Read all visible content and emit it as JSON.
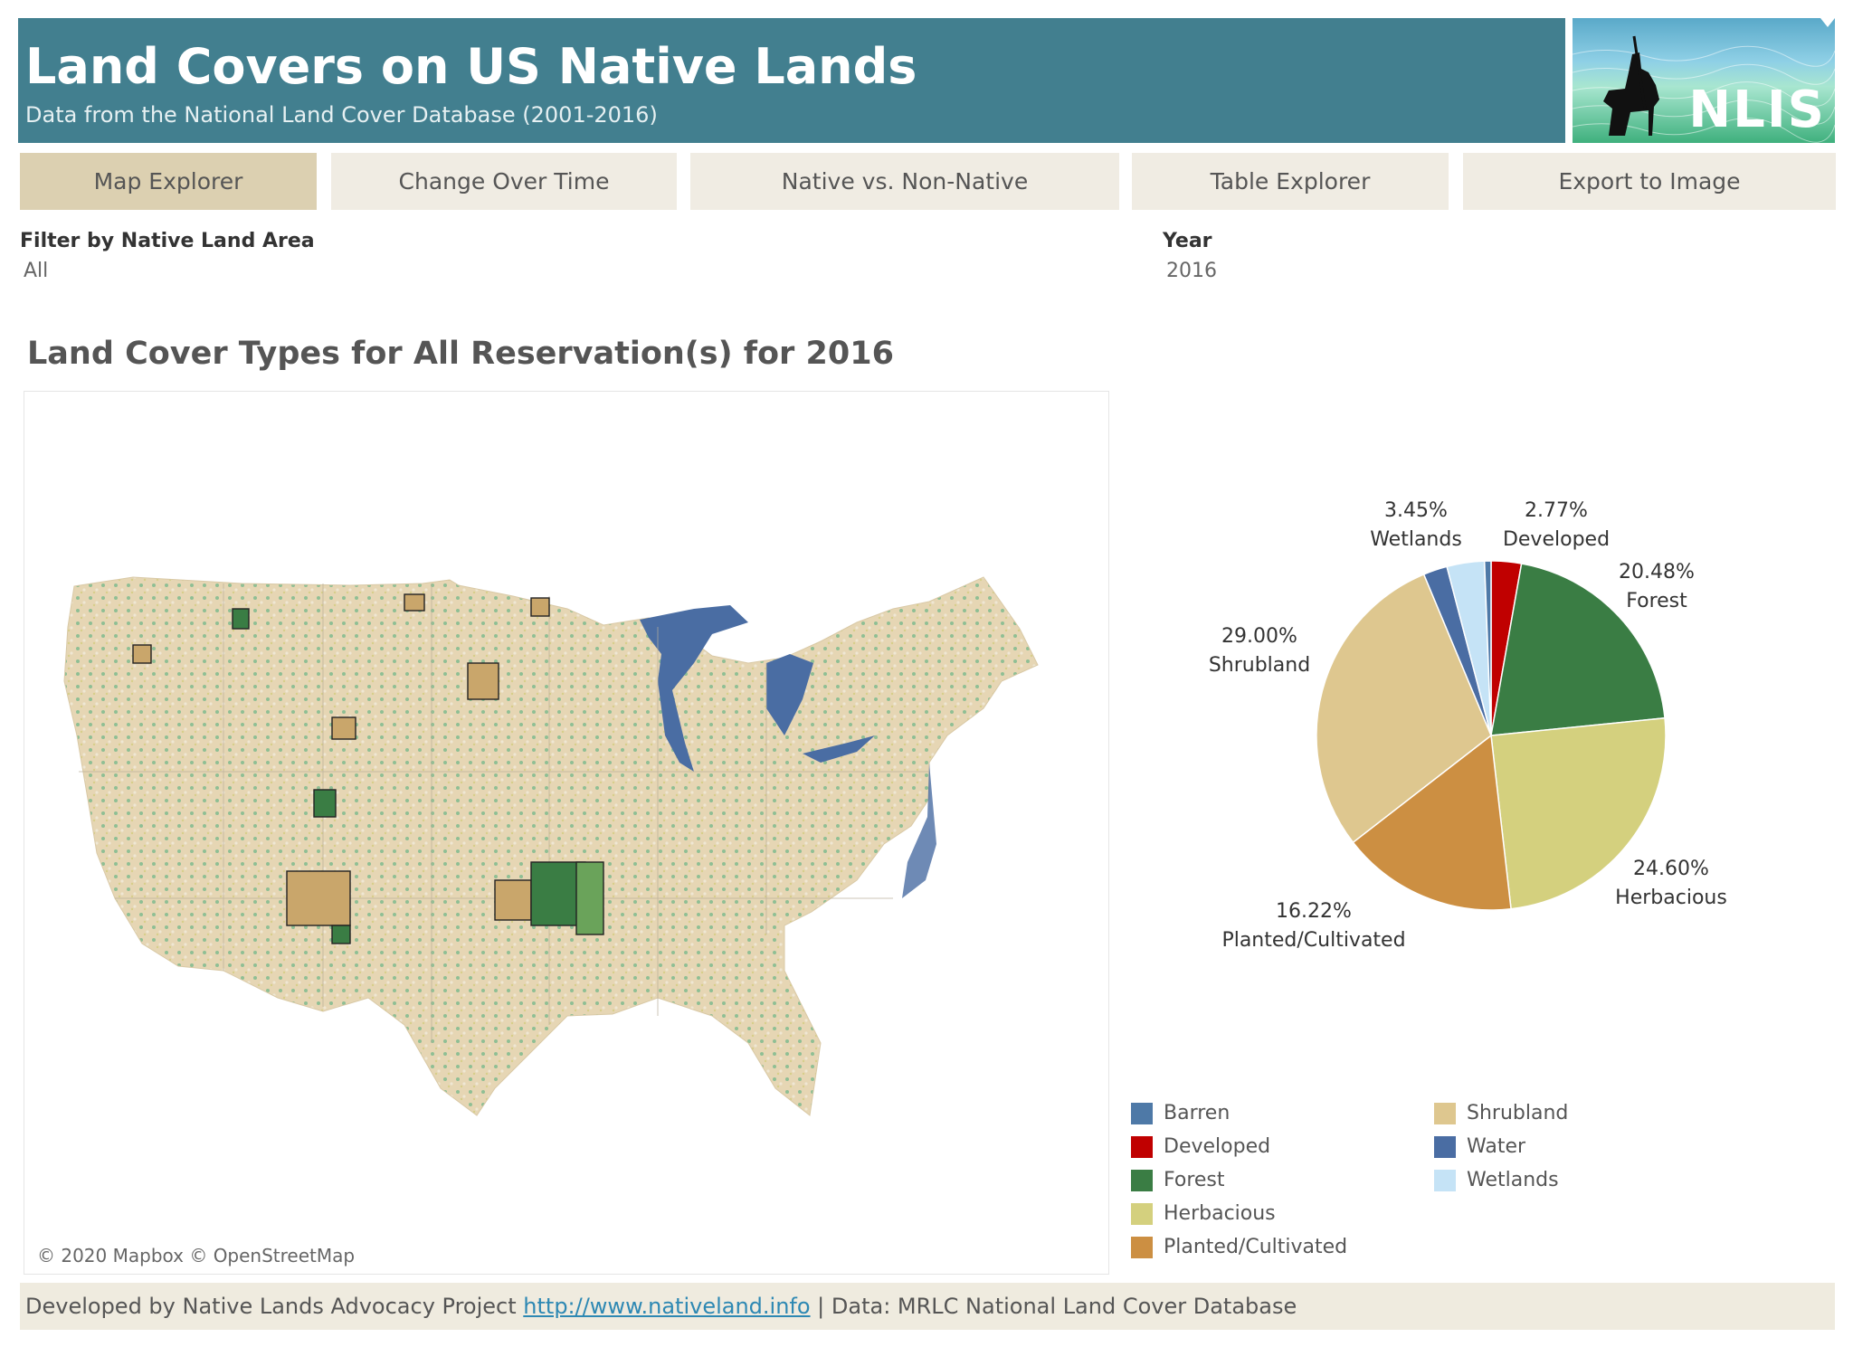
{
  "header": {
    "title": "Land Covers on US Native Lands",
    "subtitle": "Data from the National Land Cover Database (2001-2016)",
    "logo_text": "NLIS"
  },
  "tabs": [
    {
      "label": "Map Explorer",
      "active": true
    },
    {
      "label": "Change Over Time",
      "active": false
    },
    {
      "label": "Native vs. Non-Native",
      "active": false
    },
    {
      "label": "Table Explorer",
      "active": false
    },
    {
      "label": "Export to Image",
      "active": false
    }
  ],
  "filters": {
    "area_label": "Filter by Native Land Area",
    "area_value": "All",
    "year_label": "Year",
    "year_value": "2016"
  },
  "section_title": "Land Cover Types for All Reservation(s) for 2016",
  "map": {
    "attribution": "© 2020 Mapbox © OpenStreetMap"
  },
  "chart_data": {
    "type": "pie",
    "slices": [
      {
        "name": "Developed",
        "value": 2.77,
        "pct_label": "2.77%",
        "color": "#c00000"
      },
      {
        "name": "Forest",
        "value": 20.48,
        "pct_label": "20.48%",
        "color": "#3a7d44"
      },
      {
        "name": "Herbacious",
        "value": 24.6,
        "pct_label": "24.60%",
        "color": "#d4d07e"
      },
      {
        "name": "Planted/Cultivated",
        "value": 16.22,
        "pct_label": "16.22%",
        "color": "#cc8f42"
      },
      {
        "name": "Shrubland",
        "value": 29.0,
        "pct_label": "29.00%",
        "color": "#dec78f"
      },
      {
        "name": "Water",
        "value": 2.2,
        "pct_label": "",
        "color": "#4a6da3"
      },
      {
        "name": "Wetlands",
        "value": 3.45,
        "pct_label": "3.45%",
        "color": "#c5e3f6"
      },
      {
        "name": "Barren",
        "value": 0.6,
        "pct_label": "",
        "color": "#4e79a7"
      }
    ],
    "legend_position": "bottom",
    "legend": [
      {
        "name": "Barren",
        "color": "#4e79a7"
      },
      {
        "name": "Developed",
        "color": "#c00000"
      },
      {
        "name": "Forest",
        "color": "#3a7d44"
      },
      {
        "name": "Herbacious",
        "color": "#d4d07e"
      },
      {
        "name": "Planted/Cultivated",
        "color": "#cc8f42"
      },
      {
        "name": "Shrubland",
        "color": "#dec78f"
      },
      {
        "name": "Water",
        "color": "#4a6da3"
      },
      {
        "name": "Wetlands",
        "color": "#c5e3f6"
      }
    ]
  },
  "footer": {
    "prefix": "Developed by Native Lands Advocacy Project ",
    "link": "http://www.nativeland.info",
    "suffix": " | Data: MRLC National Land Cover Database"
  }
}
